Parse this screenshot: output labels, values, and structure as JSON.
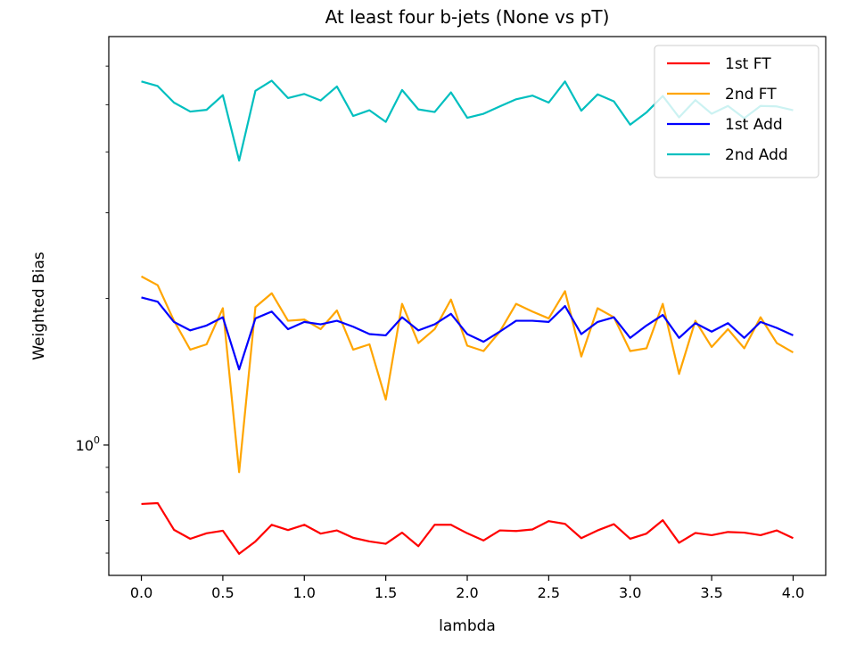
{
  "chart_data": {
    "type": "line",
    "title": "At least four b-jets (None vs pT)",
    "xlabel": "lambda",
    "ylabel": "Weighted Bias",
    "yscale": "log",
    "xlim": [
      -0.2,
      4.2
    ],
    "ylim": [
      0.54,
      6.9
    ],
    "grid": false,
    "legend_position": "top-right",
    "x": [
      0.0,
      0.1,
      0.2,
      0.3,
      0.4,
      0.5,
      0.6,
      0.7,
      0.8,
      0.9,
      1.0,
      1.1,
      1.2,
      1.3,
      1.4,
      1.5,
      1.6,
      1.7,
      1.8,
      1.9,
      2.0,
      2.1,
      2.2,
      2.3,
      2.4,
      2.5,
      2.6,
      2.7,
      2.8,
      2.9,
      3.0,
      3.1,
      3.2,
      3.3,
      3.4,
      3.5,
      3.6,
      3.7,
      3.8,
      3.9,
      4.0
    ],
    "x_ticks": [
      {
        "value": 0.0,
        "label": "0.0"
      },
      {
        "value": 0.5,
        "label": "0.5"
      },
      {
        "value": 1.0,
        "label": "1.0"
      },
      {
        "value": 1.5,
        "label": "1.5"
      },
      {
        "value": 2.0,
        "label": "2.0"
      },
      {
        "value": 2.5,
        "label": "2.5"
      },
      {
        "value": 3.0,
        "label": "3.0"
      },
      {
        "value": 3.5,
        "label": "3.5"
      },
      {
        "value": 4.0,
        "label": "4.0"
      }
    ],
    "y_ticks": [
      {
        "value": 1.0,
        "base": "10",
        "exponent": "0"
      }
    ],
    "series": [
      {
        "name": "1st FT",
        "color": "#ff0000",
        "values": [
          0.757,
          0.76,
          0.67,
          0.642,
          0.659,
          0.667,
          0.598,
          0.634,
          0.686,
          0.669,
          0.686,
          0.658,
          0.668,
          0.645,
          0.634,
          0.627,
          0.661,
          0.62,
          0.686,
          0.686,
          0.659,
          0.637,
          0.668,
          0.666,
          0.671,
          0.698,
          0.689,
          0.644,
          0.668,
          0.688,
          0.642,
          0.658,
          0.701,
          0.63,
          0.66,
          0.653,
          0.663,
          0.661,
          0.653,
          0.668,
          0.644
        ]
      },
      {
        "name": "2nd FT",
        "color": "#ffa500",
        "values": [
          2.22,
          2.13,
          1.8,
          1.57,
          1.61,
          1.91,
          0.88,
          1.92,
          2.05,
          1.8,
          1.81,
          1.73,
          1.89,
          1.57,
          1.61,
          1.24,
          1.95,
          1.62,
          1.73,
          1.99,
          1.6,
          1.56,
          1.71,
          1.95,
          1.88,
          1.82,
          2.07,
          1.52,
          1.91,
          1.83,
          1.56,
          1.58,
          1.95,
          1.4,
          1.8,
          1.59,
          1.73,
          1.58,
          1.83,
          1.62,
          1.55
        ]
      },
      {
        "name": "1st Add",
        "color": "#0000ff",
        "values": [
          2.01,
          1.97,
          1.79,
          1.72,
          1.76,
          1.83,
          1.43,
          1.82,
          1.88,
          1.73,
          1.79,
          1.77,
          1.8,
          1.75,
          1.69,
          1.68,
          1.83,
          1.72,
          1.77,
          1.86,
          1.69,
          1.63,
          1.71,
          1.8,
          1.8,
          1.79,
          1.93,
          1.69,
          1.79,
          1.83,
          1.66,
          1.76,
          1.85,
          1.66,
          1.78,
          1.71,
          1.78,
          1.66,
          1.79,
          1.74,
          1.68
        ]
      },
      {
        "name": "2nd Add",
        "color": "#00bfbf",
        "values": [
          5.58,
          5.46,
          5.05,
          4.84,
          4.88,
          5.23,
          3.84,
          5.34,
          5.6,
          5.16,
          5.26,
          5.1,
          5.45,
          4.74,
          4.87,
          4.61,
          5.36,
          4.89,
          4.83,
          5.3,
          4.7,
          4.79,
          4.96,
          5.13,
          5.22,
          5.05,
          5.58,
          4.86,
          5.25,
          5.08,
          4.55,
          4.82,
          5.21,
          4.71,
          5.11,
          4.79,
          4.97,
          4.69,
          4.97,
          4.96,
          4.87
        ]
      }
    ]
  }
}
